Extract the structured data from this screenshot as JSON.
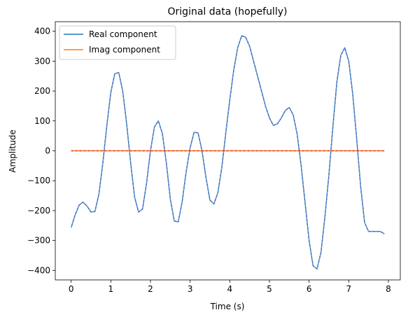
{
  "chart_data": {
    "type": "line",
    "title": "Original data (hopefully)",
    "xlabel": "Time (s)",
    "ylabel": "Amplitude",
    "xlim": [
      -0.4,
      8.3
    ],
    "ylim": [
      -432,
      432
    ],
    "xticks": [
      0,
      1,
      2,
      3,
      4,
      5,
      6,
      7,
      8
    ],
    "yticks": [
      -400,
      -300,
      -200,
      -100,
      0,
      100,
      200,
      300,
      400
    ],
    "xtick_labels": [
      "0",
      "1",
      "2",
      "3",
      "4",
      "5",
      "6",
      "7",
      "8"
    ],
    "ytick_labels": [
      "−400",
      "−300",
      "−200",
      "−100",
      "0",
      "100",
      "200",
      "300",
      "400"
    ],
    "grid": false,
    "legend_position": "upper-left",
    "x": [
      0.0,
      0.1,
      0.2,
      0.3,
      0.4,
      0.5,
      0.6,
      0.7,
      0.8,
      0.9,
      1.0,
      1.1,
      1.2,
      1.3,
      1.4,
      1.5,
      1.6,
      1.7,
      1.8,
      1.9,
      2.0,
      2.1,
      2.2,
      2.3,
      2.4,
      2.5,
      2.6,
      2.7,
      2.8,
      2.9,
      3.0,
      3.1,
      3.2,
      3.3,
      3.4,
      3.5,
      3.6,
      3.7,
      3.8,
      3.9,
      4.0,
      4.1,
      4.2,
      4.3,
      4.4,
      4.5,
      4.6,
      4.7,
      4.8,
      4.9,
      5.0,
      5.1,
      5.2,
      5.3,
      5.4,
      5.5,
      5.6,
      5.7,
      5.8,
      5.9,
      6.0,
      6.1,
      6.2,
      6.3,
      6.4,
      6.5,
      6.6,
      6.7,
      6.8,
      6.9,
      7.0,
      7.1,
      7.2,
      7.3,
      7.4,
      7.5,
      7.6,
      7.7,
      7.8,
      7.9
    ],
    "series": [
      {
        "name": "Real component",
        "color": "#1f77b4",
        "values": [
          -257,
          -215,
          -182,
          -172,
          -185,
          -205,
          -203,
          -145,
          -40,
          85,
          195,
          258,
          262,
          200,
          90,
          -40,
          -155,
          -205,
          -195,
          -110,
          0,
          80,
          100,
          58,
          -40,
          -160,
          -235,
          -238,
          -170,
          -70,
          10,
          62,
          60,
          0,
          -90,
          -165,
          -178,
          -140,
          -55,
          60,
          170,
          270,
          345,
          385,
          380,
          350,
          300,
          250,
          200,
          150,
          110,
          85,
          90,
          110,
          135,
          145,
          120,
          55,
          -50,
          -175,
          -300,
          -385,
          -395,
          -340,
          -220,
          -80,
          80,
          230,
          320,
          345,
          300,
          190,
          40,
          -120,
          -240,
          -270,
          -270,
          -270,
          -270,
          -278
        ]
      },
      {
        "name": "Imag component",
        "color": "#ff7f0e",
        "values": [
          0,
          0,
          0,
          0,
          0,
          0,
          0,
          0,
          0,
          0,
          0,
          0,
          0,
          0,
          0,
          0,
          0,
          0,
          0,
          0,
          0,
          0,
          0,
          0,
          0,
          0,
          0,
          0,
          0,
          0,
          0,
          0,
          0,
          0,
          0,
          0,
          0,
          0,
          0,
          0,
          0,
          0,
          0,
          0,
          0,
          0,
          0,
          0,
          0,
          0,
          0,
          0,
          0,
          0,
          0,
          0,
          0,
          0,
          0,
          0,
          0,
          0,
          0,
          0,
          0,
          0,
          0,
          0,
          0,
          0,
          0,
          0,
          0,
          0,
          0,
          0,
          0,
          0,
          0,
          0
        ]
      }
    ]
  }
}
